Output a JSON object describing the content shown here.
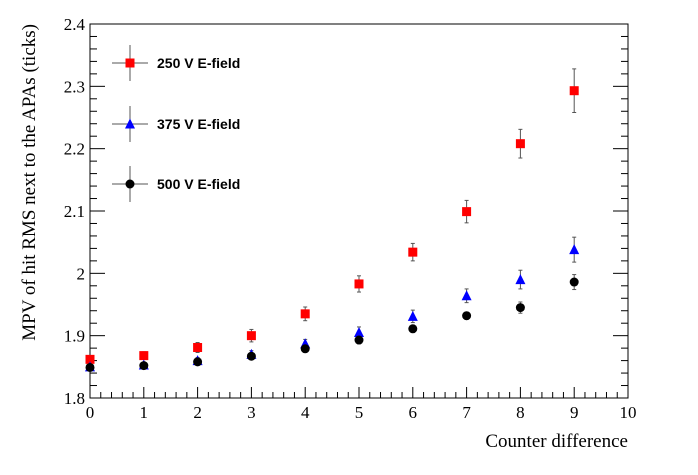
{
  "chart_data": {
    "type": "scatter",
    "xlabel": "Counter difference",
    "ylabel": "MPV of hit RMS next to the APAs (ticks)",
    "xlim": [
      0,
      10
    ],
    "ylim": [
      1.8,
      2.4
    ],
    "x_ticks": [
      "0",
      "1",
      "2",
      "3",
      "4",
      "5",
      "6",
      "7",
      "8",
      "9",
      "10"
    ],
    "y_ticks": [
      "1.8",
      "1.9",
      "2",
      "2.1",
      "2.2",
      "2.3",
      "2.4"
    ],
    "grid": false,
    "legend_position": "top-left",
    "series": [
      {
        "name": "250 V E-field",
        "marker": "square",
        "color": "#ff0000",
        "x": [
          0,
          1,
          2,
          3,
          4,
          5,
          6,
          7,
          8,
          9
        ],
        "y": [
          1.862,
          1.868,
          1.881,
          1.9,
          1.935,
          1.983,
          2.034,
          2.099,
          2.208,
          2.293
        ],
        "err": [
          0.006,
          0.006,
          0.008,
          0.01,
          0.011,
          0.013,
          0.014,
          0.018,
          0.023,
          0.035
        ]
      },
      {
        "name": "375 V E-field",
        "marker": "triangle",
        "color": "#0000ff",
        "x": [
          0,
          1,
          2,
          3,
          4,
          5,
          6,
          7,
          8,
          9
        ],
        "y": [
          1.85,
          1.853,
          1.86,
          1.87,
          1.887,
          1.905,
          1.931,
          1.964,
          1.99,
          2.038
        ],
        "err": [
          0.004,
          0.004,
          0.005,
          0.006,
          0.007,
          0.009,
          0.01,
          0.011,
          0.015,
          0.02
        ]
      },
      {
        "name": "500 V E-field",
        "marker": "circle",
        "color": "#000000",
        "x": [
          0,
          1,
          2,
          3,
          4,
          5,
          6,
          7,
          8,
          9
        ],
        "y": [
          1.849,
          1.852,
          1.858,
          1.867,
          1.879,
          1.893,
          1.911,
          1.932,
          1.945,
          1.986
        ],
        "err": [
          0.003,
          0.003,
          0.004,
          0.005,
          0.005,
          0.006,
          0.006,
          0.006,
          0.009,
          0.012
        ]
      }
    ]
  }
}
